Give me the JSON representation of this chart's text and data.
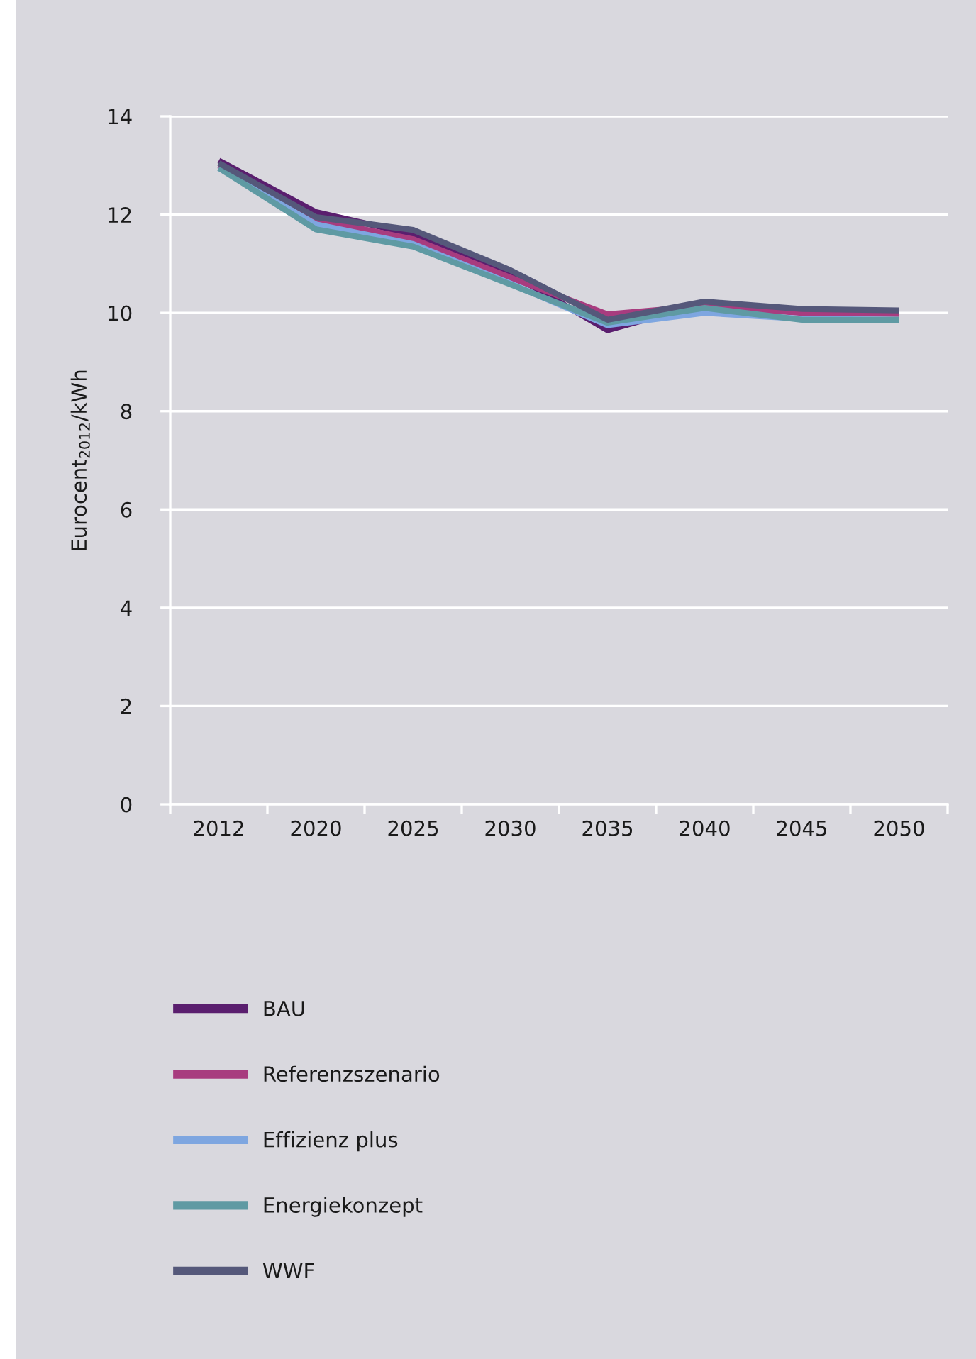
{
  "chart_data": {
    "type": "line",
    "ylabel": "Eurocent$_{2012}$/kWh",
    "categories": [
      "2012",
      "2020",
      "2025",
      "2030",
      "2035",
      "2040",
      "2045",
      "2050"
    ],
    "series": [
      {
        "name": "BAU",
        "color": "#5a1e6e",
        "values": [
          13.1,
          12.05,
          11.6,
          10.8,
          9.65,
          10.2,
          10.05,
          10.0
        ]
      },
      {
        "name": "Referenzszenario",
        "color": "#a83c7f",
        "values": [
          13.0,
          11.9,
          11.5,
          10.72,
          9.97,
          10.14,
          10.0,
          9.98
        ]
      },
      {
        "name": "Effizienz plus",
        "color": "#7ea6e0",
        "values": [
          12.95,
          11.8,
          11.4,
          10.6,
          9.75,
          10.0,
          9.88,
          9.86
        ]
      },
      {
        "name": "Energiekonzept",
        "color": "#5f9aa3",
        "values": [
          12.95,
          11.7,
          11.35,
          10.58,
          9.8,
          10.1,
          9.86,
          9.86
        ]
      },
      {
        "name": "WWF",
        "color": "#55587a",
        "values": [
          13.05,
          11.95,
          11.69,
          10.87,
          9.86,
          10.23,
          10.08,
          10.05
        ]
      }
    ],
    "ylim": [
      0,
      14
    ],
    "yticks": [
      0,
      2,
      4,
      6,
      8,
      10,
      12,
      14
    ],
    "grid": "y",
    "legend": "bottom",
    "marker": "none",
    "line_style": "solid"
  }
}
